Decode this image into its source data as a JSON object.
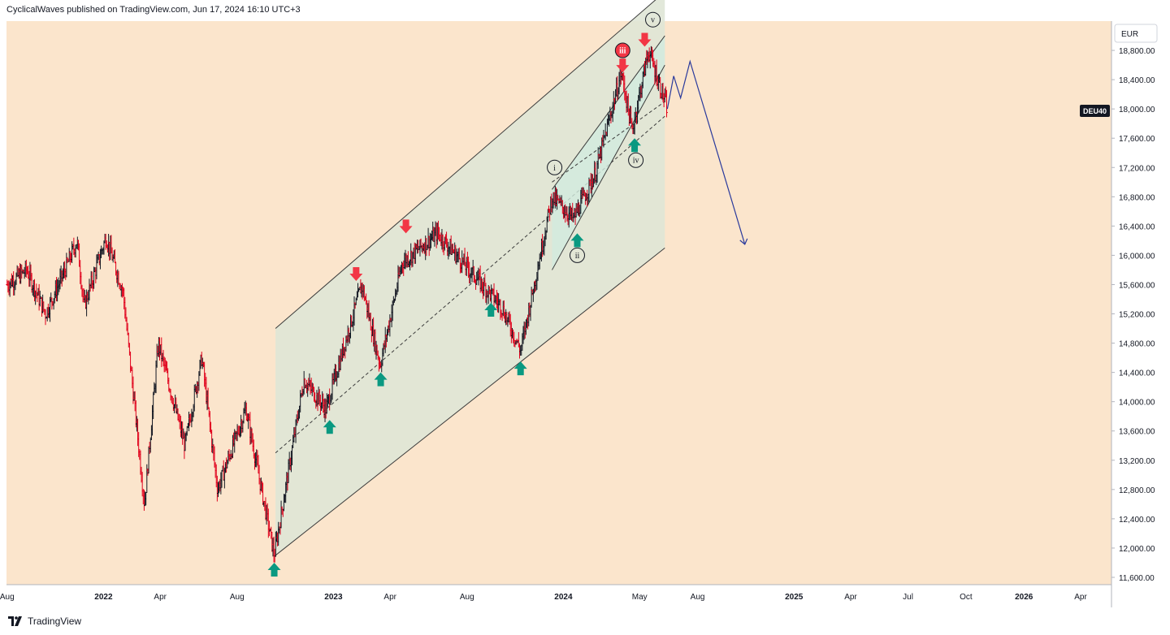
{
  "header": {
    "published_by": "CyclicalWaves published on TradingView.com, Jun 17, 2024 16:10 UTC+3"
  },
  "footer": {
    "brand": "TradingView"
  },
  "colors": {
    "background": "#fbe5cc",
    "channel_fill": "#dfe6d6",
    "inner_channel_fill": "#d2ebdf",
    "bar_up": "#131722",
    "bar_down": "#e0001b",
    "arrow_up": "#0a9981",
    "arrow_down": "#f23645",
    "projection": "#2a3a9c",
    "channel_line": "#3b3b3b"
  },
  "chart_data": {
    "type": "ohlc",
    "symbol_label": "DEU40",
    "currency": "EUR",
    "y_axis": {
      "ticks": [
        "18,800.00",
        "18,400.00",
        "18,000.00",
        "17,600.00",
        "17,200.00",
        "16,800.00",
        "16,400.00",
        "16,000.00",
        "15,600.00",
        "15,200.00",
        "14,800.00",
        "14,400.00",
        "14,000.00",
        "13,600.00",
        "13,200.00",
        "12,800.00",
        "12,400.00",
        "12,000.00",
        "11,600.00"
      ],
      "ylim": [
        11500,
        19200
      ],
      "last_price_label": "18,000.00"
    },
    "x_axis": {
      "ticks": [
        {
          "label": "Aug",
          "date": "2021-08-01"
        },
        {
          "label": "2022",
          "date": "2022-01-01"
        },
        {
          "label": "Apr",
          "date": "2022-04-01"
        },
        {
          "label": "Aug",
          "date": "2022-08-01"
        },
        {
          "label": "2023",
          "date": "2023-01-01"
        },
        {
          "label": "Apr",
          "date": "2023-04-01"
        },
        {
          "label": "Aug",
          "date": "2023-08-01"
        },
        {
          "label": "2024",
          "date": "2024-01-01"
        },
        {
          "label": "May",
          "date": "2024-05-01"
        },
        {
          "label": "Aug",
          "date": "2024-08-01"
        },
        {
          "label": "2025",
          "date": "2025-01-01"
        },
        {
          "label": "Apr",
          "date": "2025-04-01"
        },
        {
          "label": "Jul",
          "date": "2025-07-01"
        },
        {
          "label": "Oct",
          "date": "2025-10-01"
        },
        {
          "label": "2026",
          "date": "2026-01-01"
        },
        {
          "label": "Apr",
          "date": "2026-04-01"
        }
      ]
    },
    "price_path": [
      {
        "date": "2021-08-01",
        "value": 15600
      },
      {
        "date": "2021-09-01",
        "value": 15800
      },
      {
        "date": "2021-10-01",
        "value": 15200
      },
      {
        "date": "2021-11-01",
        "value": 15800
      },
      {
        "date": "2021-11-20",
        "value": 16200
      },
      {
        "date": "2021-12-01",
        "value": 15300
      },
      {
        "date": "2022-01-05",
        "value": 16250
      },
      {
        "date": "2022-02-01",
        "value": 15500
      },
      {
        "date": "2022-03-07",
        "value": 12600
      },
      {
        "date": "2022-03-29",
        "value": 14800
      },
      {
        "date": "2022-05-10",
        "value": 13400
      },
      {
        "date": "2022-06-06",
        "value": 14600
      },
      {
        "date": "2022-07-01",
        "value": 12800
      },
      {
        "date": "2022-08-15",
        "value": 13900
      },
      {
        "date": "2022-09-29",
        "value": 11900
      },
      {
        "date": "2022-11-15",
        "value": 14300
      },
      {
        "date": "2022-12-20",
        "value": 13900
      },
      {
        "date": "2023-02-15",
        "value": 15600
      },
      {
        "date": "2023-03-16",
        "value": 14500
      },
      {
        "date": "2023-04-20",
        "value": 15900
      },
      {
        "date": "2023-06-15",
        "value": 16300
      },
      {
        "date": "2023-08-15",
        "value": 15700
      },
      {
        "date": "2023-09-25",
        "value": 15300
      },
      {
        "date": "2023-10-25",
        "value": 14700
      },
      {
        "date": "2023-11-25",
        "value": 16000
      },
      {
        "date": "2023-12-14",
        "value": 16800
      },
      {
        "date": "2024-01-17",
        "value": 16500
      },
      {
        "date": "2024-02-20",
        "value": 17100
      },
      {
        "date": "2024-04-02",
        "value": 18500
      },
      {
        "date": "2024-04-19",
        "value": 17700
      },
      {
        "date": "2024-05-15",
        "value": 18800
      },
      {
        "date": "2024-06-14",
        "value": 18000
      }
    ],
    "projection": [
      {
        "date": "2024-06-14",
        "value": 18000
      },
      {
        "date": "2024-06-24",
        "value": 18450
      },
      {
        "date": "2024-07-05",
        "value": 18150
      },
      {
        "date": "2024-07-20",
        "value": 18650
      },
      {
        "date": "2024-10-15",
        "value": 16150
      }
    ],
    "big_channel": {
      "start_date": "2022-10-01",
      "end_date": "2024-06-10",
      "upper": [
        15000,
        19600
      ],
      "mid": [
        13300,
        17900
      ],
      "lower": [
        11900,
        16100
      ]
    },
    "inner_channel": {
      "start_date": "2023-12-14",
      "end_date": "2024-06-10",
      "upper": [
        16900,
        19000
      ],
      "lower": [
        15800,
        18600
      ],
      "mid": [
        17000,
        18100
      ]
    },
    "wave_labels": [
      {
        "label": "i",
        "date": "2023-12-18",
        "value": 17200
      },
      {
        "label": "ii",
        "date": "2024-01-23",
        "value": 16000
      },
      {
        "label": "iii",
        "date": "2024-04-04",
        "value": 18800
      },
      {
        "label": "iv",
        "date": "2024-04-25",
        "value": 17300
      },
      {
        "label": "v",
        "date": "2024-05-22",
        "value": 19220
      }
    ],
    "signals": [
      {
        "type": "up",
        "date": "2022-09-29",
        "value": 11700
      },
      {
        "type": "up",
        "date": "2022-12-26",
        "value": 13650
      },
      {
        "type": "up",
        "date": "2023-03-17",
        "value": 14300
      },
      {
        "type": "up",
        "date": "2023-09-08",
        "value": 15250
      },
      {
        "type": "up",
        "date": "2023-10-25",
        "value": 14450
      },
      {
        "type": "up",
        "date": "2024-01-23",
        "value": 16200
      },
      {
        "type": "up",
        "date": "2024-04-23",
        "value": 17500
      },
      {
        "type": "down",
        "date": "2023-02-06",
        "value": 15750
      },
      {
        "type": "down",
        "date": "2023-04-26",
        "value": 16400
      },
      {
        "type": "down",
        "date": "2024-05-09",
        "value": 18950
      },
      {
        "type": "down",
        "date": "2024-04-04",
        "value": 18600
      }
    ]
  }
}
